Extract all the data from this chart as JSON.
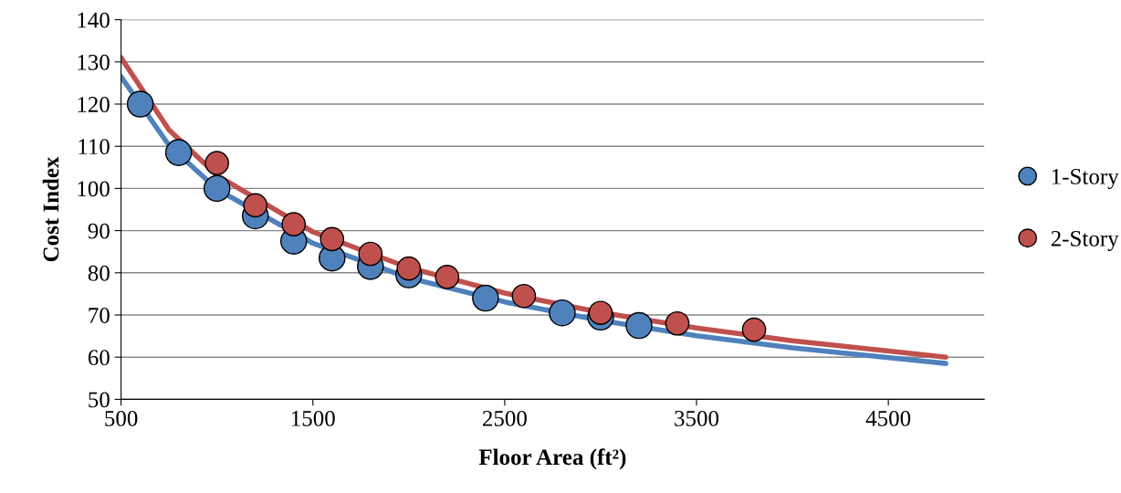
{
  "chart_data": {
    "type": "scatter",
    "xlabel": "Floor Area (ft²)",
    "ylabel": "Cost Index",
    "xlim": [
      500,
      5000
    ],
    "xticks": [
      500,
      1500,
      2500,
      3500,
      4500
    ],
    "ylim": [
      50,
      140
    ],
    "yticks": [
      50,
      60,
      70,
      80,
      90,
      100,
      110,
      120,
      130,
      140
    ],
    "grid": "y",
    "legend": "right",
    "marker": "circle",
    "series": [
      {
        "type": "line",
        "color": "#4f81bd",
        "marker": "none",
        "x": [
          500,
          750,
          1000,
          1500,
          2000,
          2500,
          3000,
          3500,
          4000,
          4800
        ],
        "values": [
          126.5,
          110.2,
          99.8,
          87.0,
          78.8,
          73.1,
          68.7,
          65.1,
          62.2,
          58.5
        ]
      },
      {
        "type": "line",
        "color": "#c0504d",
        "marker": "none",
        "x": [
          500,
          750,
          1000,
          1500,
          2000,
          2500,
          3000,
          3500,
          4000,
          4800
        ],
        "values": [
          131.0,
          113.9,
          103.1,
          89.7,
          81.2,
          75.2,
          70.6,
          66.9,
          63.9,
          60.0
        ]
      },
      {
        "name": "1-Story",
        "color": "#4f81bd",
        "x": [
          600,
          800,
          1000,
          1200,
          1400,
          1600,
          1800,
          2000,
          2400,
          2800,
          3000,
          3200
        ],
        "values": [
          120,
          108.5,
          100,
          93.5,
          87.5,
          83.5,
          81.5,
          79.5,
          74,
          70.5,
          69.5,
          67.5
        ]
      },
      {
        "name": "2-Story",
        "color": "#c0504d",
        "x": [
          1000,
          1200,
          1400,
          1600,
          1800,
          2000,
          2200,
          2600,
          3000,
          3400,
          3800
        ],
        "values": [
          106,
          96,
          91.5,
          88,
          84.5,
          81,
          79,
          74.5,
          70.5,
          68,
          66.5
        ]
      }
    ]
  }
}
